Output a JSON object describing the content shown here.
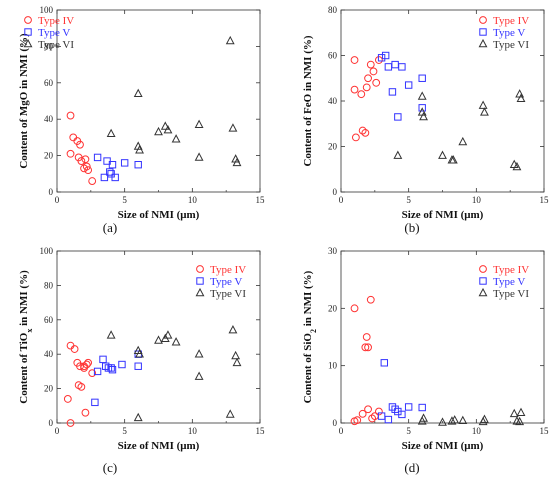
{
  "chart_data": [
    {
      "type": "scatter",
      "panel_label": "(a)",
      "xlabel": "Size of NMI   (μm)",
      "ylabel_html": "Content of MgO in NMI   (%)",
      "xlim": [
        0,
        15
      ],
      "ylim": [
        0,
        100
      ],
      "xticks": [
        0,
        5,
        10,
        15
      ],
      "yticks": [
        0,
        20,
        40,
        60,
        80,
        100
      ],
      "legend": "top-left",
      "series": [
        {
          "name": "Type IV",
          "color": "#ff3333",
          "marker": "circle",
          "x": [
            1.0,
            1.0,
            1.2,
            1.5,
            1.6,
            1.7,
            1.8,
            2.0,
            2.1,
            2.2,
            2.3,
            2.6
          ],
          "y": [
            42,
            21,
            30,
            28,
            19,
            26,
            17,
            13,
            18,
            14,
            12,
            6
          ]
        },
        {
          "name": "Type V",
          "color": "#3333ff",
          "marker": "square",
          "x": [
            3.0,
            3.5,
            3.7,
            3.9,
            4.0,
            4.1,
            4.3,
            5.0,
            6.0
          ],
          "y": [
            19,
            8,
            17,
            11,
            10,
            15,
            8,
            16,
            15
          ]
        },
        {
          "name": "Type VI",
          "color": "#333333",
          "marker": "triangle",
          "x": [
            4.0,
            6.0,
            6.0,
            6.1,
            7.5,
            8.0,
            8.2,
            8.8,
            10.5,
            10.5,
            12.8,
            13.0,
            13.2,
            13.3
          ],
          "y": [
            32,
            54,
            25,
            23,
            33,
            36,
            34,
            29,
            37,
            19,
            83,
            35,
            18,
            16
          ]
        }
      ]
    },
    {
      "type": "scatter",
      "panel_label": "(b)",
      "xlabel": "Size of NMI   (μm)",
      "ylabel_html": "Content of FeO in NMI   (%)",
      "xlim": [
        0,
        15
      ],
      "ylim": [
        0,
        80
      ],
      "xticks": [
        0,
        5,
        10,
        15
      ],
      "yticks": [
        0,
        20,
        40,
        60,
        80
      ],
      "legend": "top-right",
      "series": [
        {
          "name": "Type IV",
          "color": "#ff3333",
          "marker": "circle",
          "x": [
            1.0,
            1.0,
            1.1,
            1.5,
            1.6,
            1.8,
            1.9,
            2.0,
            2.2,
            2.4,
            2.6,
            2.8
          ],
          "y": [
            45,
            58,
            24,
            43,
            27,
            26,
            46,
            50,
            56,
            53,
            48,
            58
          ]
        },
        {
          "name": "Type V",
          "color": "#3333ff",
          "marker": "square",
          "x": [
            3.0,
            3.3,
            3.5,
            3.8,
            4.0,
            4.2,
            4.5,
            5.0,
            6.0,
            6.0
          ],
          "y": [
            59,
            60,
            55,
            44,
            56,
            33,
            55,
            47,
            50,
            37
          ]
        },
        {
          "name": "Type VI",
          "color": "#333333",
          "marker": "triangle",
          "x": [
            4.2,
            6.0,
            6.0,
            6.1,
            7.5,
            8.2,
            8.3,
            9.0,
            10.5,
            10.6,
            12.8,
            13.0,
            13.2,
            13.3
          ],
          "y": [
            16,
            42,
            35,
            33,
            16,
            14,
            14,
            22,
            38,
            35,
            12,
            11,
            43,
            41
          ]
        }
      ]
    },
    {
      "type": "scatter",
      "panel_label": "(c)",
      "xlabel": "Size of NMI   (μm)",
      "ylabel_html": "Content of TiO<tspan baseline-shift=\"sub\" font-size=\"8\">x</tspan> in NMI   (%)",
      "xlim": [
        0,
        15
      ],
      "ylim": [
        0,
        100
      ],
      "xticks": [
        0,
        5,
        10,
        15
      ],
      "yticks": [
        0,
        20,
        40,
        60,
        80,
        100
      ],
      "legend": "top-right",
      "series": [
        {
          "name": "Type IV",
          "color": "#ff3333",
          "marker": "circle",
          "x": [
            0.8,
            1.0,
            1.0,
            1.3,
            1.5,
            1.6,
            1.7,
            1.8,
            2.0,
            2.0,
            2.1,
            2.2,
            2.3,
            2.6
          ],
          "y": [
            14,
            0,
            45,
            43,
            35,
            22,
            33,
            21,
            32,
            33,
            6,
            34,
            35,
            29
          ]
        },
        {
          "name": "Type V",
          "color": "#3333ff",
          "marker": "square",
          "x": [
            2.8,
            3.0,
            3.4,
            3.6,
            3.8,
            4.0,
            4.1,
            4.8,
            6.0,
            6.0
          ],
          "y": [
            12,
            30,
            37,
            33,
            32,
            32,
            31,
            34,
            33,
            40
          ]
        },
        {
          "name": "Type VI",
          "color": "#333333",
          "marker": "triangle",
          "x": [
            4.0,
            6.0,
            6.0,
            6.1,
            7.5,
            8.0,
            8.2,
            8.8,
            10.5,
            10.5,
            12.8,
            13.0,
            13.2,
            13.3
          ],
          "y": [
            51,
            3,
            42,
            40,
            48,
            49,
            51,
            47,
            40,
            27,
            5,
            54,
            39,
            35
          ]
        }
      ]
    },
    {
      "type": "scatter",
      "panel_label": "(d)",
      "xlabel": "Size of NMI   (μm)",
      "ylabel_html": "Content of SiO<tspan baseline-shift=\"sub\" font-size=\"8\">2</tspan> in NMI   (%)",
      "xlim": [
        0,
        15
      ],
      "ylim": [
        0,
        30
      ],
      "xticks": [
        0,
        5,
        10,
        15
      ],
      "yticks": [
        0,
        10,
        20,
        30
      ],
      "legend": "top-right",
      "series": [
        {
          "name": "Type IV",
          "color": "#ff3333",
          "marker": "circle",
          "x": [
            1.0,
            1.0,
            1.2,
            1.6,
            1.8,
            1.9,
            2.0,
            2.0,
            2.2,
            2.3,
            2.5,
            2.8
          ],
          "y": [
            20,
            0.3,
            0.5,
            1.6,
            13.2,
            15.0,
            2.4,
            13.2,
            21.5,
            0.8,
            1.2,
            2.0
          ]
        },
        {
          "name": "Type V",
          "color": "#3333ff",
          "marker": "square",
          "x": [
            3.0,
            3.2,
            3.5,
            3.8,
            4.0,
            4.2,
            4.5,
            5.0,
            6.0
          ],
          "y": [
            1.2,
            10.5,
            0.6,
            2.8,
            2.4,
            2.0,
            1.5,
            2.8,
            2.7
          ]
        },
        {
          "name": "Type VI",
          "color": "#333333",
          "marker": "triangle",
          "x": [
            6.0,
            6.1,
            7.5,
            8.2,
            8.4,
            9.0,
            10.5,
            10.6,
            12.8,
            13.0,
            13.2,
            13.3
          ],
          "y": [
            0.3,
            0.8,
            0.1,
            0.3,
            0.5,
            0.4,
            0.2,
            0.6,
            1.6,
            0.3,
            0.2,
            1.8
          ]
        }
      ]
    }
  ]
}
